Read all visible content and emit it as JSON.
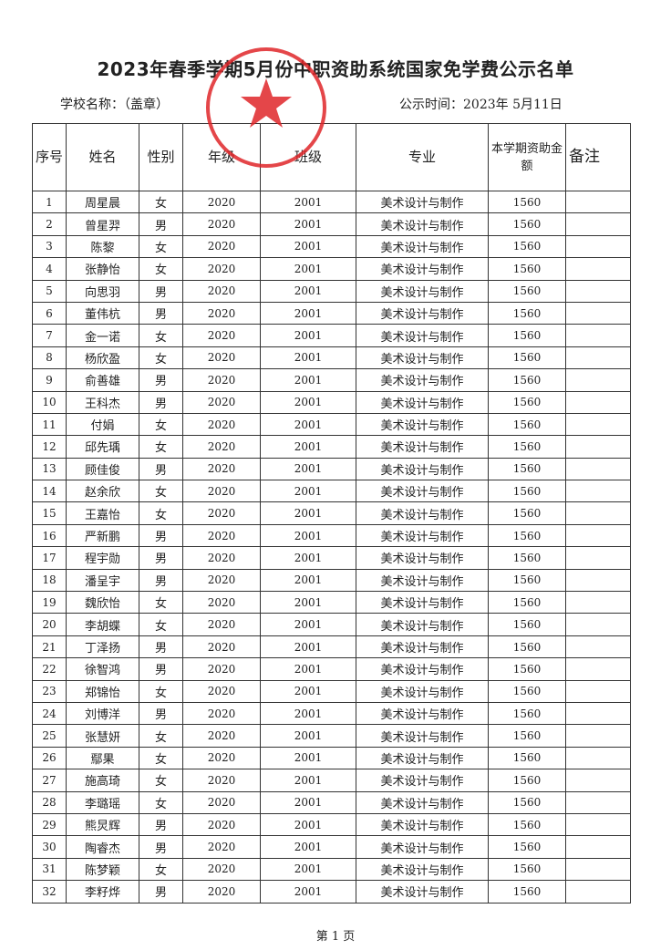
{
  "title": "2023年春季学期5月份中职资助系统国家免学费公示名单",
  "school_label": "学校名称：（盖章）",
  "publish_date": "公示时间：2023年 5月11日",
  "stamp_color": "#e0262a",
  "table": {
    "headers": [
      "序号",
      "姓名",
      "性别",
      "年级",
      "班级",
      "专业",
      "本学期资助金额",
      "备注"
    ],
    "rows": [
      [
        "1",
        "周星晨",
        "女",
        "2020",
        "2001",
        "美术设计与制作",
        "1560",
        ""
      ],
      [
        "2",
        "曾星羿",
        "男",
        "2020",
        "2001",
        "美术设计与制作",
        "1560",
        ""
      ],
      [
        "3",
        "陈黎",
        "女",
        "2020",
        "2001",
        "美术设计与制作",
        "1560",
        ""
      ],
      [
        "4",
        "张静怡",
        "女",
        "2020",
        "2001",
        "美术设计与制作",
        "1560",
        ""
      ],
      [
        "5",
        "向思羽",
        "男",
        "2020",
        "2001",
        "美术设计与制作",
        "1560",
        ""
      ],
      [
        "6",
        "董伟杭",
        "男",
        "2020",
        "2001",
        "美术设计与制作",
        "1560",
        ""
      ],
      [
        "7",
        "金一诺",
        "女",
        "2020",
        "2001",
        "美术设计与制作",
        "1560",
        ""
      ],
      [
        "8",
        "杨欣盈",
        "女",
        "2020",
        "2001",
        "美术设计与制作",
        "1560",
        ""
      ],
      [
        "9",
        "俞善雄",
        "男",
        "2020",
        "2001",
        "美术设计与制作",
        "1560",
        ""
      ],
      [
        "10",
        "王科杰",
        "男",
        "2020",
        "2001",
        "美术设计与制作",
        "1560",
        ""
      ],
      [
        "11",
        "付娟",
        "女",
        "2020",
        "2001",
        "美术设计与制作",
        "1560",
        ""
      ],
      [
        "12",
        "邱先瑀",
        "女",
        "2020",
        "2001",
        "美术设计与制作",
        "1560",
        ""
      ],
      [
        "13",
        "顾佳俊",
        "男",
        "2020",
        "2001",
        "美术设计与制作",
        "1560",
        ""
      ],
      [
        "14",
        "赵余欣",
        "女",
        "2020",
        "2001",
        "美术设计与制作",
        "1560",
        ""
      ],
      [
        "15",
        "王嘉怡",
        "女",
        "2020",
        "2001",
        "美术设计与制作",
        "1560",
        ""
      ],
      [
        "16",
        "严新鹏",
        "男",
        "2020",
        "2001",
        "美术设计与制作",
        "1560",
        ""
      ],
      [
        "17",
        "程宇勋",
        "男",
        "2020",
        "2001",
        "美术设计与制作",
        "1560",
        ""
      ],
      [
        "18",
        "潘呈宇",
        "男",
        "2020",
        "2001",
        "美术设计与制作",
        "1560",
        ""
      ],
      [
        "19",
        "魏欣怡",
        "女",
        "2020",
        "2001",
        "美术设计与制作",
        "1560",
        ""
      ],
      [
        "20",
        "李胡蝶",
        "女",
        "2020",
        "2001",
        "美术设计与制作",
        "1560",
        ""
      ],
      [
        "21",
        "丁泽扬",
        "男",
        "2020",
        "2001",
        "美术设计与制作",
        "1560",
        ""
      ],
      [
        "22",
        "徐智鸿",
        "男",
        "2020",
        "2001",
        "美术设计与制作",
        "1560",
        ""
      ],
      [
        "23",
        "郑锦怡",
        "女",
        "2020",
        "2001",
        "美术设计与制作",
        "1560",
        ""
      ],
      [
        "24",
        "刘博洋",
        "男",
        "2020",
        "2001",
        "美术设计与制作",
        "1560",
        ""
      ],
      [
        "25",
        "张慧妍",
        "女",
        "2020",
        "2001",
        "美术设计与制作",
        "1560",
        ""
      ],
      [
        "26",
        "鄢果",
        "女",
        "2020",
        "2001",
        "美术设计与制作",
        "1560",
        ""
      ],
      [
        "27",
        "施高琦",
        "女",
        "2020",
        "2001",
        "美术设计与制作",
        "1560",
        ""
      ],
      [
        "28",
        "李璐瑶",
        "女",
        "2020",
        "2001",
        "美术设计与制作",
        "1560",
        ""
      ],
      [
        "29",
        "熊炅辉",
        "男",
        "2020",
        "2001",
        "美术设计与制作",
        "1560",
        ""
      ],
      [
        "30",
        "陶睿杰",
        "男",
        "2020",
        "2001",
        "美术设计与制作",
        "1560",
        ""
      ],
      [
        "31",
        "陈梦颖",
        "女",
        "2020",
        "2001",
        "美术设计与制作",
        "1560",
        ""
      ],
      [
        "32",
        "李籽烨",
        "男",
        "2020",
        "2001",
        "美术设计与制作",
        "1560",
        ""
      ]
    ]
  },
  "footer": "第 1 页"
}
